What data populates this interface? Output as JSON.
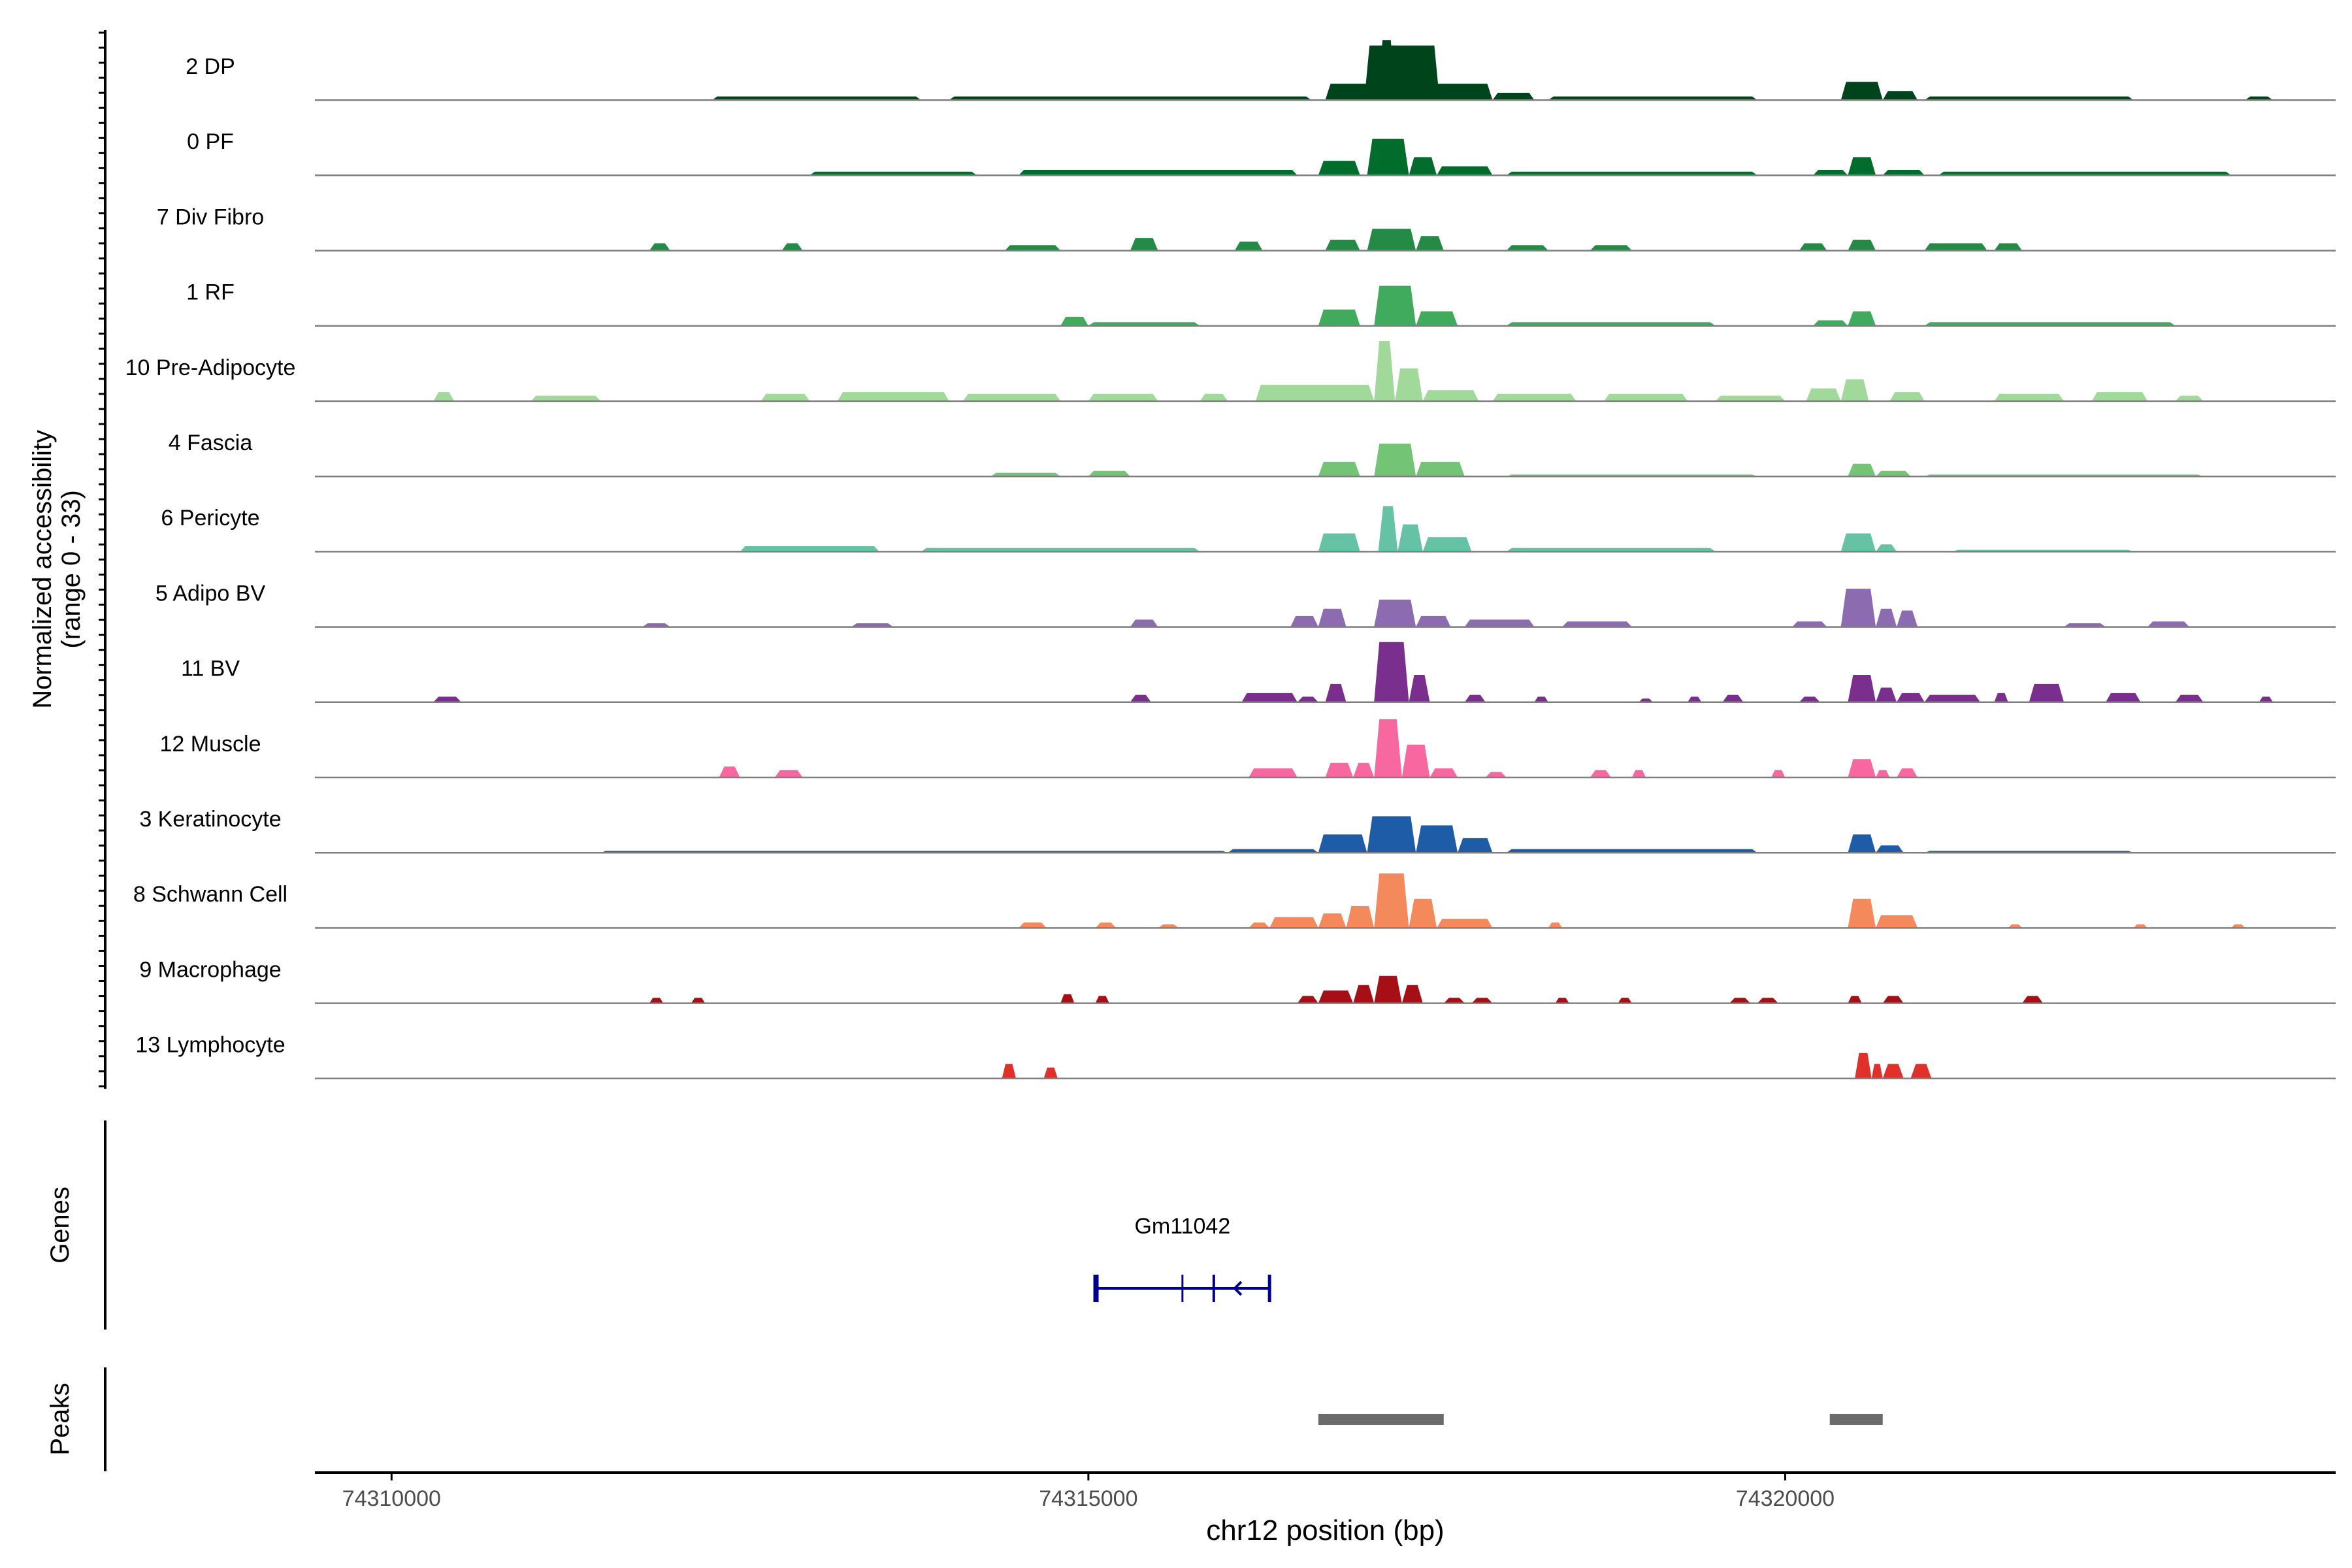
{
  "chart_data": {
    "type": "area",
    "ylabel_line1": "Normalized accessibility",
    "ylabel_line2": "(range 0 - 33)",
    "y_range": [
      0,
      33
    ],
    "xlabel": "chr12 position (bp)",
    "xlim": [
      74309450,
      74323950
    ],
    "xticks": [
      {
        "value": 74310000,
        "label": "74310000"
      },
      {
        "value": 74315000,
        "label": "74315000"
      },
      {
        "value": 74320000,
        "label": "74320000"
      }
    ],
    "tracks": [
      {
        "name": "2 DP",
        "color": "#00441b",
        "peaks": [
          [
            74316980,
            74317520,
            30
          ],
          [
            74317080,
            74317200,
            33
          ],
          [
            74317250,
            74317450,
            24
          ],
          [
            74316700,
            74317900,
            9
          ],
          [
            74317900,
            74318200,
            4
          ],
          [
            74320400,
            74320700,
            10
          ],
          [
            74320700,
            74320950,
            5
          ],
          [
            74312300,
            74313800,
            2
          ],
          [
            74314000,
            74316600,
            2
          ],
          [
            74318300,
            74319800,
            2
          ],
          [
            74321000,
            74322500,
            2
          ],
          [
            74323300,
            74323500,
            2
          ]
        ]
      },
      {
        "name": "0 PF",
        "color": "#006d2c",
        "peaks": [
          [
            74317000,
            74317300,
            20
          ],
          [
            74317300,
            74317500,
            10
          ],
          [
            74316650,
            74316950,
            8
          ],
          [
            74317500,
            74317900,
            5
          ],
          [
            74314500,
            74316500,
            3
          ],
          [
            74313000,
            74314200,
            2
          ],
          [
            74320450,
            74320650,
            10
          ],
          [
            74320200,
            74320450,
            3
          ],
          [
            74320700,
            74321000,
            3
          ],
          [
            74318000,
            74319800,
            2
          ],
          [
            74321100,
            74323200,
            2
          ]
        ]
      },
      {
        "name": "7 Div Fibro",
        "color": "#238b45",
        "peaks": [
          [
            74317000,
            74317350,
            12
          ],
          [
            74317350,
            74317550,
            8
          ],
          [
            74316700,
            74316950,
            6
          ],
          [
            74316050,
            74316250,
            5
          ],
          [
            74315300,
            74315500,
            7
          ],
          [
            74314400,
            74314800,
            3
          ],
          [
            74312800,
            74312950,
            4
          ],
          [
            74311850,
            74312000,
            4
          ],
          [
            74320450,
            74320650,
            6
          ],
          [
            74320100,
            74320300,
            4
          ],
          [
            74321000,
            74321450,
            4
          ],
          [
            74321500,
            74321700,
            4
          ],
          [
            74318000,
            74318300,
            3
          ],
          [
            74318600,
            74318900,
            3
          ]
        ]
      },
      {
        "name": "1 RF",
        "color": "#41ab5d",
        "peaks": [
          [
            74317050,
            74317350,
            22
          ],
          [
            74317350,
            74317650,
            8
          ],
          [
            74316650,
            74316950,
            9
          ],
          [
            74314800,
            74315000,
            5
          ],
          [
            74315000,
            74315800,
            2
          ],
          [
            74320450,
            74320650,
            8
          ],
          [
            74320200,
            74320450,
            3
          ],
          [
            74318000,
            74319500,
            2
          ],
          [
            74321000,
            74322800,
            2
          ]
        ]
      },
      {
        "name": "10 Pre-Adipocyte",
        "color": "#a1d99b",
        "peaks": [
          [
            74317050,
            74317200,
            33
          ],
          [
            74317200,
            74317400,
            18
          ],
          [
            74316200,
            74317050,
            9
          ],
          [
            74317400,
            74317800,
            6
          ],
          [
            74310300,
            74310450,
            5
          ],
          [
            74312650,
            74313000,
            4
          ],
          [
            74313200,
            74314000,
            5
          ],
          [
            74314100,
            74314800,
            4
          ],
          [
            74315000,
            74315500,
            4
          ],
          [
            74315800,
            74316000,
            4
          ],
          [
            74317900,
            74318500,
            4
          ],
          [
            74318700,
            74319300,
            4
          ],
          [
            74319500,
            74320000,
            3
          ],
          [
            74320400,
            74320600,
            12
          ],
          [
            74320150,
            74320400,
            7
          ],
          [
            74320750,
            74321000,
            5
          ],
          [
            74321500,
            74322000,
            4
          ],
          [
            74322200,
            74322600,
            5
          ],
          [
            74322800,
            74323000,
            3
          ],
          [
            74311000,
            74311500,
            3
          ]
        ]
      },
      {
        "name": "4 Fascia",
        "color": "#74c476",
        "peaks": [
          [
            74317050,
            74317350,
            18
          ],
          [
            74317350,
            74317700,
            8
          ],
          [
            74316650,
            74316950,
            8
          ],
          [
            74315000,
            74315300,
            3
          ],
          [
            74314300,
            74314800,
            2
          ],
          [
            74320450,
            74320650,
            7
          ],
          [
            74320650,
            74320900,
            3
          ],
          [
            74318000,
            74319800,
            1
          ],
          [
            74321000,
            74323000,
            1
          ]
        ]
      },
      {
        "name": "6 Pericyte",
        "color": "#66c2a4",
        "peaks": [
          [
            74317080,
            74317220,
            25
          ],
          [
            74317220,
            74317400,
            15
          ],
          [
            74316650,
            74316950,
            10
          ],
          [
            74317400,
            74317750,
            8
          ],
          [
            74312500,
            74313500,
            3
          ],
          [
            74313800,
            74315800,
            2
          ],
          [
            74320400,
            74320650,
            10
          ],
          [
            74320650,
            74320800,
            4
          ],
          [
            74318000,
            74319500,
            2
          ],
          [
            74321200,
            74322500,
            1
          ]
        ]
      },
      {
        "name": "5 Adipo BV",
        "color": "#8c6bb1",
        "peaks": [
          [
            74317050,
            74317350,
            15
          ],
          [
            74316650,
            74316850,
            10
          ],
          [
            74316450,
            74316650,
            6
          ],
          [
            74317350,
            74317600,
            6
          ],
          [
            74317700,
            74318200,
            4
          ],
          [
            74318400,
            74318900,
            3
          ],
          [
            74315300,
            74315500,
            4
          ],
          [
            74320400,
            74320650,
            21
          ],
          [
            74320650,
            74320800,
            10
          ],
          [
            74320800,
            74320950,
            9
          ],
          [
            74320050,
            74320300,
            3
          ],
          [
            74311800,
            74312000,
            2
          ],
          [
            74313300,
            74313600,
            2
          ],
          [
            74322000,
            74322300,
            2
          ],
          [
            74322600,
            74322900,
            3
          ]
        ]
      },
      {
        "name": "11 BV",
        "color": "#7a2e8e",
        "peaks": [
          [
            74317050,
            74317300,
            33
          ],
          [
            74317300,
            74317450,
            15
          ],
          [
            74316700,
            74316850,
            10
          ],
          [
            74316100,
            74316500,
            5
          ],
          [
            74316500,
            74316650,
            3
          ],
          [
            74317700,
            74317850,
            4
          ],
          [
            74318200,
            74318300,
            3
          ],
          [
            74310300,
            74310500,
            3
          ],
          [
            74315300,
            74315450,
            4
          ],
          [
            74320450,
            74320650,
            15
          ],
          [
            74320650,
            74320800,
            8
          ],
          [
            74320800,
            74321000,
            5
          ],
          [
            74321000,
            74321400,
            4
          ],
          [
            74321500,
            74321600,
            5
          ],
          [
            74321750,
            74322000,
            10
          ],
          [
            74322300,
            74322550,
            5
          ],
          [
            74322800,
            74323000,
            4
          ],
          [
            74323400,
            74323500,
            3
          ],
          [
            74319300,
            74319400,
            3
          ],
          [
            74319550,
            74319700,
            4
          ],
          [
            74320100,
            74320250,
            3
          ],
          [
            74318950,
            74319050,
            2
          ]
        ]
      },
      {
        "name": "12 Muscle",
        "color": "#f768a1",
        "peaks": [
          [
            74317050,
            74317250,
            32
          ],
          [
            74317250,
            74317450,
            18
          ],
          [
            74316900,
            74317050,
            8
          ],
          [
            74316700,
            74316900,
            8
          ],
          [
            74316150,
            74316500,
            5
          ],
          [
            74317450,
            74317650,
            5
          ],
          [
            74317850,
            74318000,
            3
          ],
          [
            74312350,
            74312500,
            6
          ],
          [
            74312750,
            74312950,
            4
          ],
          [
            74318600,
            74318750,
            4
          ],
          [
            74318900,
            74319000,
            4
          ],
          [
            74319900,
            74320000,
            4
          ],
          [
            74320450,
            74320650,
            10
          ],
          [
            74320650,
            74320750,
            4
          ],
          [
            74320800,
            74320950,
            5
          ]
        ]
      },
      {
        "name": "3 Keratinocyte",
        "color": "#1f5ca8",
        "peaks": [
          [
            74317000,
            74317350,
            20
          ],
          [
            74317350,
            74317650,
            15
          ],
          [
            74317650,
            74317900,
            8
          ],
          [
            74316650,
            74317000,
            10
          ],
          [
            74316000,
            74316650,
            2
          ],
          [
            74311500,
            74316000,
            1
          ],
          [
            74320450,
            74320650,
            10
          ],
          [
            74320650,
            74320850,
            4
          ],
          [
            74318000,
            74319800,
            2
          ],
          [
            74321000,
            74322500,
            1
          ]
        ]
      },
      {
        "name": "8 Schwann Cell",
        "color": "#f4895c",
        "peaks": [
          [
            74317050,
            74317300,
            30
          ],
          [
            74317300,
            74317500,
            16
          ],
          [
            74316850,
            74317050,
            12
          ],
          [
            74316650,
            74316850,
            8
          ],
          [
            74316300,
            74316650,
            6
          ],
          [
            74316150,
            74316300,
            3
          ],
          [
            74317500,
            74317900,
            5
          ],
          [
            74318300,
            74318400,
            3
          ],
          [
            74314500,
            74314700,
            3
          ],
          [
            74315050,
            74315200,
            3
          ],
          [
            74315500,
            74315650,
            2
          ],
          [
            74320450,
            74320650,
            16
          ],
          [
            74320650,
            74320950,
            7
          ],
          [
            74321600,
            74321700,
            2
          ],
          [
            74322500,
            74322600,
            2
          ],
          [
            74323200,
            74323300,
            2
          ]
        ]
      },
      {
        "name": "9 Macrophage",
        "color": "#a50f15",
        "peaks": [
          [
            74317050,
            74317250,
            15
          ],
          [
            74317250,
            74317400,
            10
          ],
          [
            74316900,
            74317050,
            10
          ],
          [
            74316650,
            74316900,
            7
          ],
          [
            74316500,
            74316650,
            4
          ],
          [
            74317550,
            74317700,
            3
          ],
          [
            74317750,
            74317900,
            3
          ],
          [
            74311850,
            74311950,
            3
          ],
          [
            74312150,
            74312250,
            3
          ],
          [
            74314800,
            74314900,
            5
          ],
          [
            74315050,
            74315150,
            4
          ],
          [
            74318350,
            74318450,
            3
          ],
          [
            74318800,
            74318900,
            3
          ],
          [
            74319600,
            74319750,
            3
          ],
          [
            74319800,
            74319950,
            3
          ],
          [
            74320450,
            74320550,
            4
          ],
          [
            74320700,
            74320850,
            4
          ],
          [
            74321700,
            74321850,
            4
          ]
        ]
      },
      {
        "name": "13 Lymphocyte",
        "color": "#e0302a",
        "peaks": [
          [
            74314380,
            74314480,
            8
          ],
          [
            74314680,
            74314780,
            6
          ],
          [
            74320500,
            74320620,
            14
          ],
          [
            74320620,
            74320700,
            8
          ],
          [
            74320700,
            74320850,
            8
          ],
          [
            74320900,
            74321050,
            8
          ]
        ]
      }
    ],
    "genes_label": "Genes",
    "gene": {
      "name": "Gm11042",
      "start": 74315050,
      "end": 74316300,
      "color": "#00008b",
      "strand": "-"
    },
    "peaks_label": "Peaks",
    "peak_regions": [
      [
        74316650,
        74317550
      ],
      [
        74320320,
        74320700
      ]
    ]
  }
}
